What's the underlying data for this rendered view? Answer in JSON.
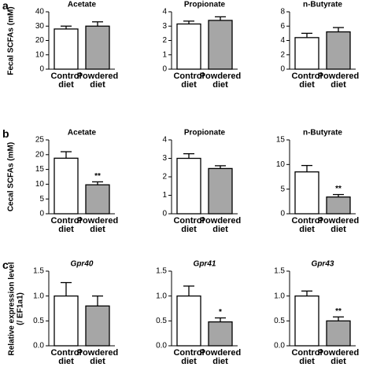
{
  "panels": [
    {
      "label": "a",
      "ylabel": [
        "Fecal SCFAs (mM)"
      ]
    },
    {
      "label": "b",
      "ylabel": [
        "Cecal SCFAs (mM)"
      ]
    },
    {
      "label": "c",
      "ylabel": [
        "Relative expression level",
        "(/ EF1a1)"
      ]
    }
  ],
  "chart_data": [
    {
      "type": "bar",
      "title": "Acetate",
      "title_style": "normal",
      "categories": [
        "Control diet",
        "Powdered diet"
      ],
      "values": [
        28,
        30
      ],
      "errors": [
        2,
        3
      ],
      "colors": [
        "#ffffff",
        "#a6a6a6"
      ],
      "significance": [
        null,
        null
      ],
      "ylim": [
        0,
        40
      ],
      "yticks": [
        0,
        10,
        20,
        30,
        40
      ]
    },
    {
      "type": "bar",
      "title": "Propionate",
      "title_style": "normal",
      "categories": [
        "Control diet",
        "Powdered diet"
      ],
      "values": [
        3.15,
        3.4
      ],
      "errors": [
        0.2,
        0.25
      ],
      "colors": [
        "#ffffff",
        "#a6a6a6"
      ],
      "significance": [
        null,
        null
      ],
      "ylim": [
        0,
        4
      ],
      "yticks": [
        0,
        1,
        2,
        3,
        4
      ]
    },
    {
      "type": "bar",
      "title": "n-Butyrate",
      "title_style": "normal",
      "categories": [
        "Control diet",
        "Powdered diet"
      ],
      "values": [
        4.4,
        5.2
      ],
      "errors": [
        0.6,
        0.6
      ],
      "colors": [
        "#ffffff",
        "#a6a6a6"
      ],
      "significance": [
        null,
        null
      ],
      "ylim": [
        0,
        8
      ],
      "yticks": [
        0,
        2,
        4,
        6,
        8
      ]
    },
    {
      "type": "bar",
      "title": "Acetate",
      "title_style": "normal",
      "categories": [
        "Control diet",
        "Powdered diet"
      ],
      "values": [
        18.8,
        9.8
      ],
      "errors": [
        2.2,
        1.0
      ],
      "colors": [
        "#ffffff",
        "#a6a6a6"
      ],
      "significance": [
        null,
        "**"
      ],
      "ylim": [
        0,
        25
      ],
      "yticks": [
        0,
        5,
        10,
        15,
        20,
        25
      ]
    },
    {
      "type": "bar",
      "title": "Propionate",
      "title_style": "normal",
      "categories": [
        "Control diet",
        "Powdered diet"
      ],
      "values": [
        3.0,
        2.45
      ],
      "errors": [
        0.25,
        0.15
      ],
      "colors": [
        "#ffffff",
        "#a6a6a6"
      ],
      "significance": [
        null,
        null
      ],
      "ylim": [
        0,
        4
      ],
      "yticks": [
        0,
        1,
        2,
        3,
        4
      ]
    },
    {
      "type": "bar",
      "title": "n-Butyrate",
      "title_style": "normal",
      "categories": [
        "Control diet",
        "Powdered diet"
      ],
      "values": [
        8.5,
        3.4
      ],
      "errors": [
        1.3,
        0.5
      ],
      "colors": [
        "#ffffff",
        "#a6a6a6"
      ],
      "significance": [
        null,
        "**"
      ],
      "ylim": [
        0,
        15
      ],
      "yticks": [
        0,
        5,
        10,
        15
      ]
    },
    {
      "type": "bar",
      "title": "Gpr40",
      "title_style": "italic",
      "categories": [
        "Control diet",
        "Powdered diet"
      ],
      "values": [
        1.0,
        0.8
      ],
      "errors": [
        0.27,
        0.2
      ],
      "colors": [
        "#ffffff",
        "#a6a6a6"
      ],
      "significance": [
        null,
        null
      ],
      "ylim": [
        0,
        1.5
      ],
      "yticks": [
        {
          "value": 0,
          "label": "0.0"
        },
        0.5,
        {
          "value": 1,
          "label": "1.0"
        },
        1.5
      ]
    },
    {
      "type": "bar",
      "title": "Gpr41",
      "title_style": "italic",
      "categories": [
        "Control diet",
        "Powdered diet"
      ],
      "values": [
        1.0,
        0.48
      ],
      "errors": [
        0.2,
        0.08
      ],
      "colors": [
        "#ffffff",
        "#a6a6a6"
      ],
      "significance": [
        null,
        "*"
      ],
      "ylim": [
        0,
        1.5
      ],
      "yticks": [
        {
          "value": 0,
          "label": "0.0"
        },
        0.5,
        {
          "value": 1,
          "label": "1.0"
        },
        1.5
      ]
    },
    {
      "type": "bar",
      "title": "Gpr43",
      "title_style": "italic",
      "categories": [
        "Control diet",
        "Powdered diet"
      ],
      "values": [
        1.0,
        0.5
      ],
      "errors": [
        0.1,
        0.08
      ],
      "colors": [
        "#ffffff",
        "#a6a6a6"
      ],
      "significance": [
        null,
        "**"
      ],
      "ylim": [
        0,
        1.5
      ],
      "yticks": [
        {
          "value": 0,
          "label": "0.0"
        },
        0.5,
        {
          "value": 1,
          "label": "1.0"
        },
        1.5
      ]
    }
  ]
}
